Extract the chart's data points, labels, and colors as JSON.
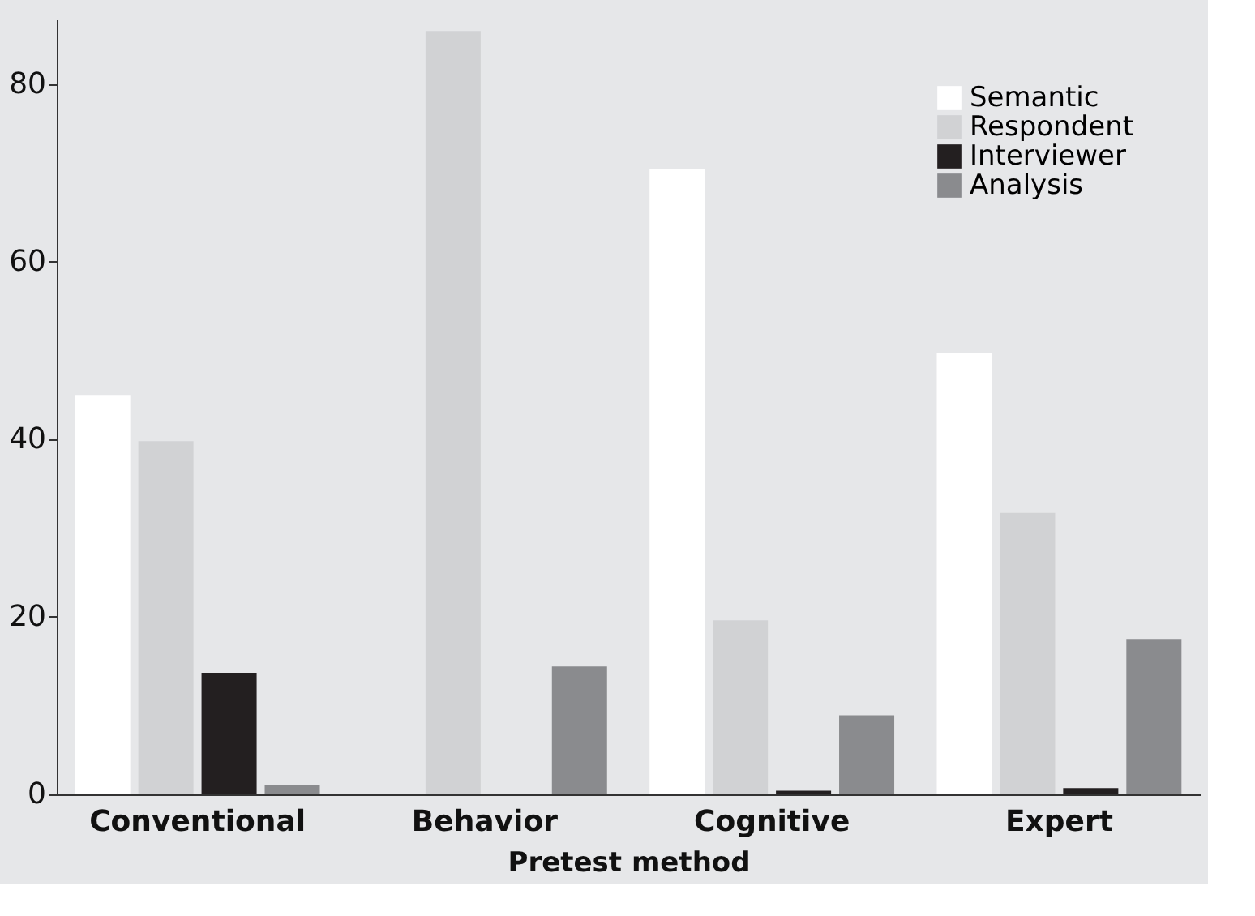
{
  "chart_data": {
    "type": "bar",
    "xlabel": "Pretest method",
    "categories": [
      "Conventional",
      "Behavior",
      "Cognitive",
      "Expert"
    ],
    "series": [
      {
        "name": "Semantic",
        "color": "#ffffff",
        "values": [
          45,
          0,
          70.5,
          49.7
        ]
      },
      {
        "name": "Respondent",
        "color": "#d1d2d4",
        "values": [
          39.8,
          86,
          19.6,
          31.7
        ]
      },
      {
        "name": "Interviewer",
        "color": "#231f20",
        "values": [
          13.7,
          0,
          0.4,
          0.7
        ]
      },
      {
        "name": "Analysis",
        "color": "#8a8b8e",
        "values": [
          1.1,
          14.4,
          8.9,
          17.5
        ]
      }
    ],
    "ylim": [
      0,
      87.3
    ],
    "yticks": [
      0,
      20,
      40,
      60,
      80
    ],
    "grid": false,
    "legend": "top right"
  }
}
